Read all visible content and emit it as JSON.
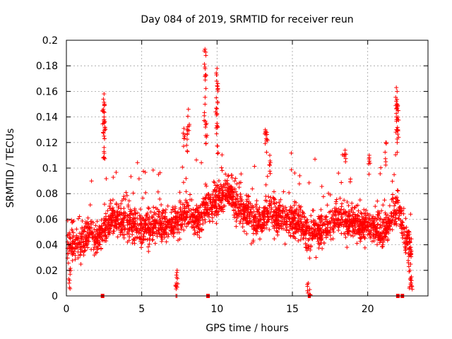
{
  "chart_data": {
    "type": "scatter",
    "title": "Day 084 of 2019, SRMTID for receiver reun",
    "xlabel": "GPS time / hours",
    "ylabel": "SRMTID / TECUs",
    "xlim": [
      0,
      24
    ],
    "ylim": [
      0,
      0.2
    ],
    "grid": true,
    "marker": "+",
    "color": "#ff0000",
    "x_ticks": [
      {
        "value": 0,
        "label": "0"
      },
      {
        "value": 5,
        "label": "5"
      },
      {
        "value": 10,
        "label": "10"
      },
      {
        "value": 15,
        "label": "15"
      },
      {
        "value": 20,
        "label": "20"
      }
    ],
    "y_ticks": [
      {
        "value": 0,
        "label": "0"
      },
      {
        "value": 0.02,
        "label": "0.02"
      },
      {
        "value": 0.04,
        "label": "0.04"
      },
      {
        "value": 0.06,
        "label": "0.06"
      },
      {
        "value": 0.08,
        "label": "0.08"
      },
      {
        "value": 0.1,
        "label": "0.1"
      },
      {
        "value": 0.12,
        "label": "0.12"
      },
      {
        "value": 0.14,
        "label": "0.14"
      },
      {
        "value": 0.16,
        "label": "0.16"
      },
      {
        "value": 0.18,
        "label": "0.18"
      },
      {
        "value": 0.2,
        "label": "0.2"
      }
    ],
    "series": [
      {
        "name": "SRMTID",
        "trend": [
          [
            0.0,
            0.04
          ],
          [
            0.5,
            0.04
          ],
          [
            1.0,
            0.042
          ],
          [
            1.5,
            0.05
          ],
          [
            2.0,
            0.045
          ],
          [
            2.5,
            0.055
          ],
          [
            3.0,
            0.06
          ],
          [
            3.5,
            0.06
          ],
          [
            4.0,
            0.058
          ],
          [
            5.0,
            0.052
          ],
          [
            6.0,
            0.055
          ],
          [
            7.0,
            0.058
          ],
          [
            7.5,
            0.06
          ],
          [
            8.0,
            0.065
          ],
          [
            8.5,
            0.058
          ],
          [
            9.0,
            0.065
          ],
          [
            9.5,
            0.072
          ],
          [
            10.0,
            0.075
          ],
          [
            10.5,
            0.08
          ],
          [
            11.0,
            0.078
          ],
          [
            11.5,
            0.07
          ],
          [
            12.0,
            0.062
          ],
          [
            12.5,
            0.058
          ],
          [
            13.0,
            0.06
          ],
          [
            13.5,
            0.068
          ],
          [
            14.0,
            0.06
          ],
          [
            15.0,
            0.058
          ],
          [
            15.5,
            0.058
          ],
          [
            16.0,
            0.05
          ],
          [
            16.5,
            0.052
          ],
          [
            17.0,
            0.05
          ],
          [
            17.5,
            0.055
          ],
          [
            18.0,
            0.06
          ],
          [
            19.0,
            0.058
          ],
          [
            19.5,
            0.055
          ],
          [
            20.0,
            0.055
          ],
          [
            20.5,
            0.052
          ],
          [
            21.0,
            0.05
          ],
          [
            21.5,
            0.058
          ],
          [
            22.0,
            0.07
          ],
          [
            22.5,
            0.045
          ],
          [
            22.9,
            0.035
          ]
        ],
        "peaks": [
          [
            2.5,
            0.158
          ],
          [
            2.45,
            0.146
          ],
          [
            2.5,
            0.14
          ],
          [
            2.55,
            0.132
          ],
          [
            2.5,
            0.125
          ],
          [
            7.8,
            0.131
          ],
          [
            8.0,
            0.13
          ],
          [
            8.1,
            0.146
          ],
          [
            9.2,
            0.193
          ],
          [
            9.25,
            0.173
          ],
          [
            9.2,
            0.15
          ],
          [
            9.3,
            0.135
          ],
          [
            10.0,
            0.178
          ],
          [
            10.05,
            0.166
          ],
          [
            9.95,
            0.155
          ],
          [
            10.0,
            0.135
          ],
          [
            13.2,
            0.13
          ],
          [
            13.3,
            0.128
          ],
          [
            13.5,
            0.11
          ],
          [
            16.1,
            0.0
          ],
          [
            16.15,
            0.005
          ],
          [
            16.05,
            0.01
          ],
          [
            18.5,
            0.114
          ],
          [
            20.1,
            0.11
          ],
          [
            21.2,
            0.12
          ],
          [
            21.9,
            0.163
          ],
          [
            21.95,
            0.16
          ],
          [
            22.0,
            0.145
          ],
          [
            21.9,
            0.14
          ],
          [
            22.0,
            0.13
          ],
          [
            22.9,
            0.015
          ],
          [
            22.8,
            0.02
          ],
          [
            7.3,
            0.01
          ],
          [
            7.35,
            0.02
          ],
          [
            0.2,
            0.02
          ]
        ],
        "gaps_at_zero": [
          2.4,
          9.4,
          22.0,
          22.3
        ]
      }
    ]
  }
}
